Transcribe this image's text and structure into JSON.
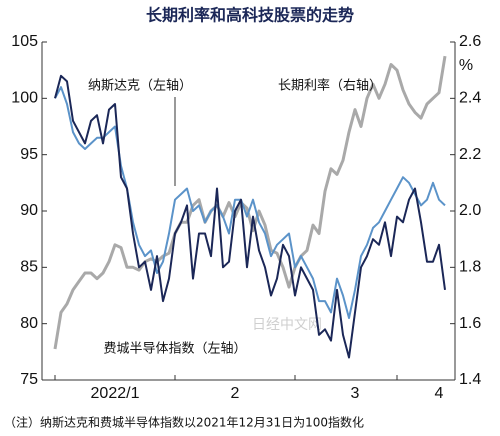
{
  "chart_data": {
    "type": "line",
    "title": "长期利率和高科技股票的走势",
    "categories": [
      null,
      null,
      null,
      null,
      null,
      null,
      null,
      null,
      null,
      null,
      "2022/1",
      null,
      null,
      null,
      null,
      null,
      null,
      null,
      null,
      null,
      null,
      null,
      null,
      null,
      null,
      null,
      null,
      null,
      null,
      null,
      "2",
      null,
      null,
      null,
      null,
      null,
      null,
      null,
      null,
      null,
      null,
      null,
      null,
      null,
      null,
      null,
      null,
      null,
      null,
      null,
      "3",
      null,
      null,
      null,
      null,
      null,
      null,
      null,
      null,
      null,
      null,
      null,
      null,
      null,
      "4",
      null
    ],
    "series": [
      {
        "name": "纳斯达克（左轴）",
        "color": "#1b2757",
        "axis": "y",
        "values": [
          100,
          102,
          101.5,
          98,
          97,
          96,
          98,
          98.5,
          96,
          99,
          99.5,
          93,
          92,
          88,
          85,
          85.5,
          83,
          86,
          82,
          84,
          88,
          89,
          90.5,
          84,
          88,
          88,
          86,
          92,
          85,
          85.5,
          90,
          91,
          85,
          89.5,
          86.5,
          85,
          82.5,
          84,
          87,
          86,
          82.5,
          85,
          84,
          83,
          79,
          79.5,
          78.5,
          83,
          79,
          77,
          81,
          85,
          86,
          87.5,
          87,
          89,
          86,
          89.5,
          89,
          91,
          92,
          89,
          85.5,
          85.5,
          87,
          83
        ]
      },
      {
        "name": "费城半导体指数（左轴）",
        "color": "#5b93c9",
        "axis": "y",
        "values": [
          100,
          101,
          99.5,
          97,
          96,
          95.5,
          96,
          96.5,
          96.5,
          97,
          97.5,
          94,
          92,
          89,
          87,
          86,
          86.5,
          84.5,
          85.5,
          88,
          91,
          91.5,
          92,
          90,
          90.5,
          89,
          90,
          90.5,
          89.5,
          88,
          91,
          91,
          89.5,
          91,
          89,
          88,
          86,
          87,
          87.5,
          88,
          85,
          86,
          85,
          84,
          82,
          82,
          81,
          84,
          82.5,
          80.5,
          83,
          86,
          87,
          88.5,
          89,
          90,
          91,
          92,
          93,
          92.5,
          91.5,
          90.5,
          91,
          92.5,
          91,
          90.5
        ]
      },
      {
        "name": "长期利率（右轴）",
        "color": "#a9a9a9",
        "axis": "y2",
        "values": [
          1.51,
          1.64,
          1.67,
          1.72,
          1.75,
          1.78,
          1.78,
          1.76,
          1.78,
          1.82,
          1.88,
          1.87,
          1.8,
          1.8,
          1.79,
          1.82,
          1.83,
          1.82,
          1.84,
          1.85,
          1.92,
          1.96,
          1.96,
          2.02,
          2.04,
          1.96,
          2,
          2.02,
          1.98,
          2.03,
          1.98,
          2.03,
          2.01,
          1.93,
          2,
          1.95,
          1.86,
          1.85,
          1.8,
          1.73,
          1.8,
          1.84,
          1.86,
          1.95,
          1.92,
          2.07,
          2.15,
          2.13,
          2.18,
          2.28,
          2.36,
          2.3,
          2.4,
          2.45,
          2.4,
          2.45,
          2.52,
          2.5,
          2.43,
          2.38,
          2.35,
          2.33,
          2.38,
          2.4,
          2.42,
          2.55
        ]
      }
    ],
    "ylim": [
      75,
      105
    ],
    "yticks": [
      75,
      80,
      85,
      90,
      95,
      100,
      105
    ],
    "y2lim": [
      1.4,
      2.6
    ],
    "y2ticks": [
      1.4,
      1.6,
      1.8,
      {
        "value": 2,
        "label": "2.0"
      },
      2.2,
      2.4,
      2.6
    ],
    "y2_unit": "%",
    "watermark": "日经中文网",
    "note": "（注）纳斯达克和费城半导体指数以2021年12月31日为100指数化"
  }
}
